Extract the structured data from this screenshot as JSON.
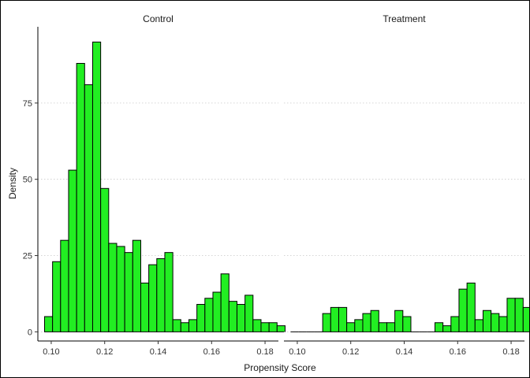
{
  "chart_data": {
    "type": "bar",
    "subtype": "faceted-histogram",
    "xlabel": "Propensity Score",
    "ylabel": "Density",
    "xlim": [
      0.095,
      0.185
    ],
    "ylim": [
      -3,
      100
    ],
    "x_ticks": [
      0.1,
      0.12,
      0.14,
      0.16,
      0.18
    ],
    "x_tick_labels": [
      "0.10",
      "0.12",
      "0.14",
      "0.16",
      "0.18"
    ],
    "y_ticks": [
      0,
      25,
      50,
      75
    ],
    "y_tick_labels": [
      "0",
      "25",
      "50",
      "75"
    ],
    "bin_width": 0.003,
    "grid": "horizontal-dotted",
    "bar_fill": "#22ee22",
    "bar_outline": "#000000",
    "facets": [
      {
        "name": "Control",
        "bins": [
          {
            "x": 0.099,
            "y": 5
          },
          {
            "x": 0.102,
            "y": 23
          },
          {
            "x": 0.105,
            "y": 30
          },
          {
            "x": 0.108,
            "y": 53
          },
          {
            "x": 0.111,
            "y": 88
          },
          {
            "x": 0.114,
            "y": 81
          },
          {
            "x": 0.117,
            "y": 95
          },
          {
            "x": 0.12,
            "y": 47
          },
          {
            "x": 0.123,
            "y": 29
          },
          {
            "x": 0.126,
            "y": 28
          },
          {
            "x": 0.129,
            "y": 26
          },
          {
            "x": 0.132,
            "y": 30
          },
          {
            "x": 0.135,
            "y": 16
          },
          {
            "x": 0.138,
            "y": 22
          },
          {
            "x": 0.141,
            "y": 24
          },
          {
            "x": 0.144,
            "y": 26
          },
          {
            "x": 0.147,
            "y": 4
          },
          {
            "x": 0.15,
            "y": 3
          },
          {
            "x": 0.153,
            "y": 4
          },
          {
            "x": 0.156,
            "y": 9
          },
          {
            "x": 0.159,
            "y": 11
          },
          {
            "x": 0.162,
            "y": 13
          },
          {
            "x": 0.165,
            "y": 19
          },
          {
            "x": 0.168,
            "y": 10
          },
          {
            "x": 0.171,
            "y": 9
          },
          {
            "x": 0.174,
            "y": 12
          },
          {
            "x": 0.177,
            "y": 4
          },
          {
            "x": 0.18,
            "y": 3
          },
          {
            "x": 0.183,
            "y": 3
          },
          {
            "x": 0.186,
            "y": 2
          }
        ]
      },
      {
        "name": "Treatment",
        "bins": [
          {
            "x": 0.099,
            "y": 0
          },
          {
            "x": 0.102,
            "y": 0
          },
          {
            "x": 0.105,
            "y": 0
          },
          {
            "x": 0.108,
            "y": 0
          },
          {
            "x": 0.111,
            "y": 6
          },
          {
            "x": 0.114,
            "y": 8
          },
          {
            "x": 0.117,
            "y": 8
          },
          {
            "x": 0.12,
            "y": 3
          },
          {
            "x": 0.123,
            "y": 4
          },
          {
            "x": 0.126,
            "y": 6
          },
          {
            "x": 0.129,
            "y": 7
          },
          {
            "x": 0.132,
            "y": 3
          },
          {
            "x": 0.135,
            "y": 3
          },
          {
            "x": 0.138,
            "y": 7
          },
          {
            "x": 0.141,
            "y": 5
          },
          {
            "x": 0.144,
            "y": 0
          },
          {
            "x": 0.147,
            "y": 0
          },
          {
            "x": 0.15,
            "y": 0
          },
          {
            "x": 0.153,
            "y": 3
          },
          {
            "x": 0.156,
            "y": 2
          },
          {
            "x": 0.159,
            "y": 5
          },
          {
            "x": 0.162,
            "y": 14
          },
          {
            "x": 0.165,
            "y": 16
          },
          {
            "x": 0.168,
            "y": 4
          },
          {
            "x": 0.171,
            "y": 7
          },
          {
            "x": 0.174,
            "y": 6
          },
          {
            "x": 0.177,
            "y": 5
          },
          {
            "x": 0.18,
            "y": 11
          },
          {
            "x": 0.183,
            "y": 11
          },
          {
            "x": 0.186,
            "y": 8
          }
        ]
      }
    ]
  }
}
